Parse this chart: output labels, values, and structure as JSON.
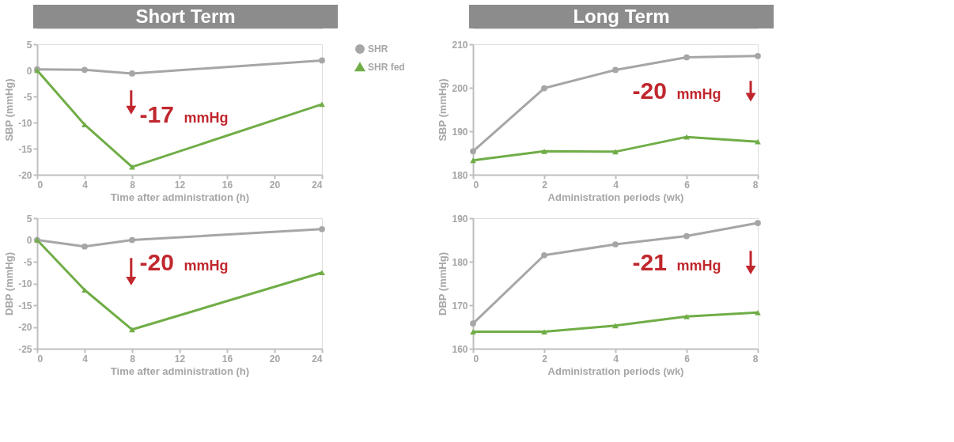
{
  "chart_data": [
    {
      "type": "line",
      "title": "Short Term",
      "ylabel": "SBP (mmHg)",
      "xlabel": "Time after administration (h)",
      "x": [
        0,
        4,
        8,
        24
      ],
      "xlim": [
        0,
        24
      ],
      "xticks": [
        0,
        4,
        8,
        12,
        16,
        20,
        24
      ],
      "ylim": [
        -20,
        5
      ],
      "yticks": [
        -20,
        -15,
        -10,
        -5,
        0,
        5
      ],
      "grid": false,
      "legend": "right",
      "annotations": [
        "-17 mmHg"
      ],
      "series": [
        {
          "name": "SHR",
          "color": "#a6a6a6",
          "marker": "circle",
          "values": [
            0.2,
            0.1,
            -0.6,
            1.9
          ]
        },
        {
          "name": "SHR fed",
          "color": "#70ad47",
          "marker": "triangle",
          "values": [
            0,
            -10.4,
            -18.5,
            -6.5
          ]
        }
      ]
    },
    {
      "type": "line",
      "ylabel": "DBP (mmHg)",
      "xlabel": "Time after administration (h)",
      "x": [
        0,
        4,
        8,
        24
      ],
      "xlim": [
        0,
        24
      ],
      "xticks": [
        0,
        4,
        8,
        12,
        16,
        20,
        24
      ],
      "ylim": [
        -25,
        5
      ],
      "yticks": [
        -25,
        -20,
        -15,
        -10,
        -5,
        0,
        5
      ],
      "grid": false,
      "annotations": [
        "-20 mmHg"
      ],
      "series": [
        {
          "color": "#a6a6a6",
          "marker": "circle",
          "values": [
            0,
            -1.5,
            0,
            2.5
          ]
        },
        {
          "color": "#70ad47",
          "marker": "triangle",
          "values": [
            0,
            -11.5,
            -20.6,
            -7.5
          ]
        }
      ]
    },
    {
      "type": "line",
      "title": "Long Term",
      "ylabel": "SBP (mmHg)",
      "xlabel": "Administration periods (wk)",
      "x": [
        0,
        2,
        4,
        6,
        8
      ],
      "xlim": [
        0,
        8
      ],
      "xticks": [
        0,
        2,
        4,
        6,
        8
      ],
      "ylim": [
        180,
        210
      ],
      "yticks": [
        180,
        190,
        200,
        210
      ],
      "grid": false,
      "annotations": [
        "-20 mmHg"
      ],
      "series": [
        {
          "color": "#a6a6a6",
          "marker": "circle",
          "values": [
            185.4,
            199.9,
            204.1,
            207.0,
            207.3
          ]
        },
        {
          "color": "#70ad47",
          "marker": "triangle",
          "values": [
            183.3,
            185.4,
            185.3,
            188.7,
            187.6
          ]
        }
      ]
    },
    {
      "type": "line",
      "ylabel": "DBP (mmHg)",
      "xlabel": "Administration periods (wk)",
      "x": [
        0,
        2,
        4,
        6,
        8
      ],
      "xlim": [
        0,
        8
      ],
      "xticks": [
        0,
        2,
        4,
        6,
        8
      ],
      "ylim": [
        160,
        190
      ],
      "yticks": [
        160,
        170,
        180,
        190
      ],
      "grid": false,
      "annotations": [
        "-21 mmHg"
      ],
      "series": [
        {
          "color": "#a6a6a6",
          "marker": "circle",
          "values": [
            165.8,
            181.5,
            184.0,
            185.9,
            188.9
          ]
        },
        {
          "color": "#70ad47",
          "marker": "triangle",
          "values": [
            163.9,
            163.9,
            165.3,
            167.4,
            168.3
          ]
        }
      ]
    }
  ]
}
